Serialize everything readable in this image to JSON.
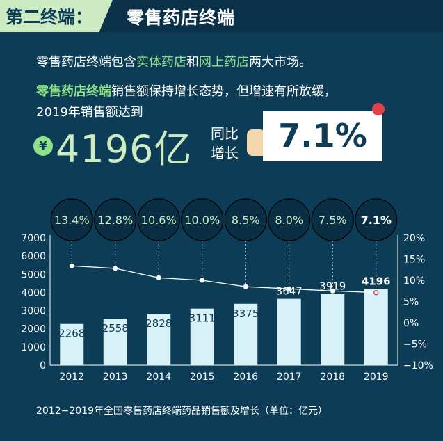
{
  "header": {
    "section_tag": "第二终端：",
    "section_title": "零售药店终端"
  },
  "intro": {
    "prefix": "零售药店终端包含",
    "hl1": "实体药店",
    "mid": "和",
    "hl2": "网上药店",
    "suffix": "两大市场。"
  },
  "summary": {
    "hl": "零售药店终端",
    "line2_rest": "销售额保持增长态势，但增速有所放缓，",
    "line3": "2019年销售额达到",
    "yen_symbol": "¥",
    "big_value": "4196亿",
    "yoy_label_1": "同比",
    "yoy_label_2": "增长",
    "growth_card": "7.1%"
  },
  "colors": {
    "background": "#0d3d56",
    "accent": "#8fe08b",
    "bar": "#d6f1f7",
    "line": "#ffffff",
    "bubble": "#0a2e44",
    "highlight_point": "#e2434b"
  },
  "chart_data": {
    "type": "bar",
    "categories": [
      "2012",
      "2013",
      "2014",
      "2015",
      "2016",
      "2017",
      "2018",
      "2019"
    ],
    "series": [
      {
        "values": [
          2268,
          2558,
          2828,
          3111,
          3375,
          3647,
          3919,
          4196
        ]
      },
      {
        "type": "line",
        "axis": "right",
        "values": [
          13.4,
          12.8,
          10.6,
          10.0,
          8.5,
          8.0,
          7.5,
          7.1
        ]
      }
    ],
    "bar_labels": [
      "2268",
      "2558",
      "2828",
      "3111",
      "3375",
      "3647",
      "3919",
      "4196"
    ],
    "bubble_labels": [
      "13.4%",
      "12.8%",
      "10.6%",
      "10.0%",
      "8.5%",
      "8.0%",
      "7.5%",
      "7.1%"
    ],
    "ylim": [
      0,
      7000
    ],
    "yticks": [
      "0",
      "1000",
      "2000",
      "3000",
      "4000",
      "5000",
      "6000",
      "7000"
    ],
    "y2lim": [
      -10,
      20
    ],
    "y2ticks": [
      "−10%",
      "−5%",
      "0%",
      "5%",
      "10%",
      "15%",
      "20%"
    ],
    "grid": false
  },
  "caption": "2012−2019年全国零售药店终端药品销售额及增长（单位：亿元）"
}
